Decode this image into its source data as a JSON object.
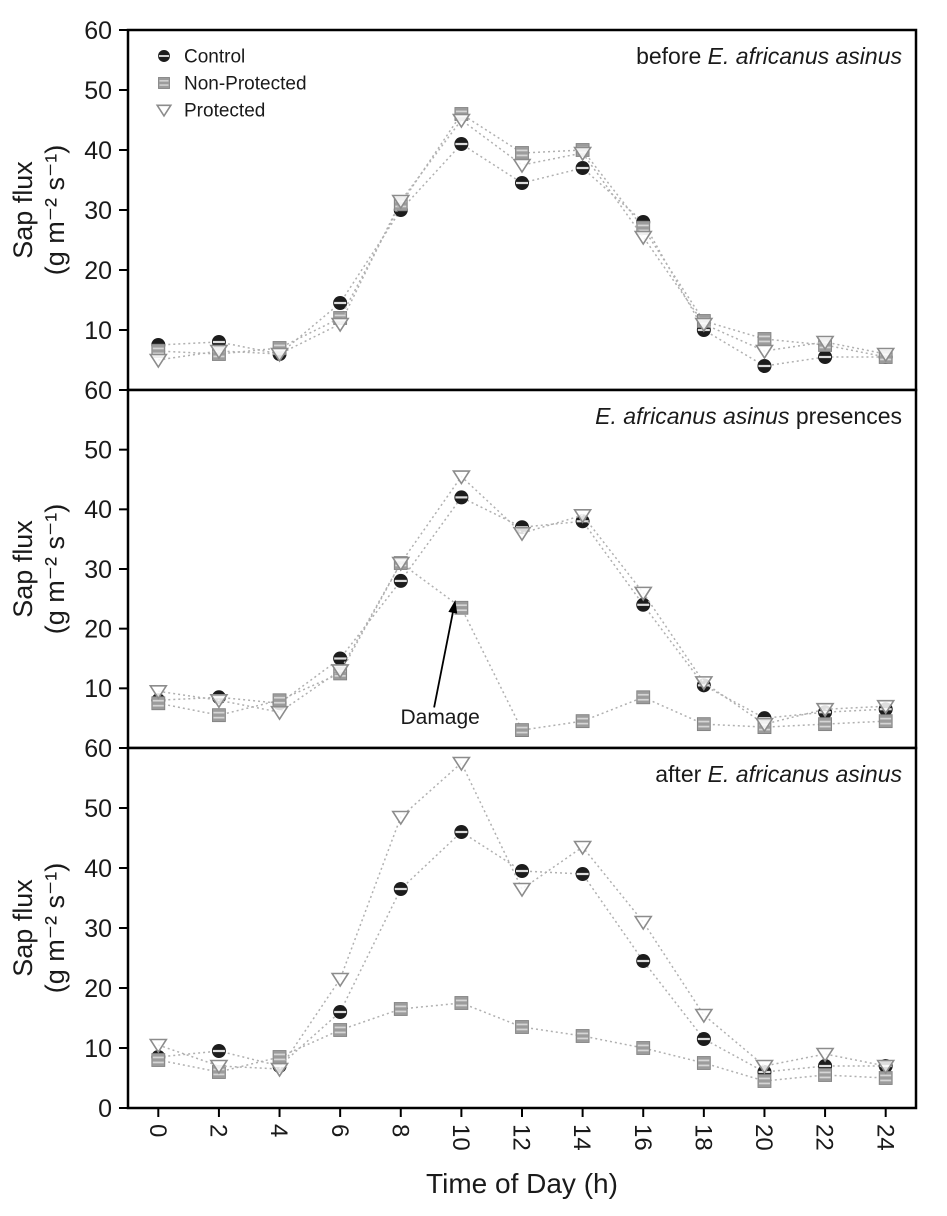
{
  "axes": {
    "xlabel": "Time of Day (h)",
    "ylabel_line1": "Sap flux",
    "ylabel_line2": "(g m⁻² s⁻¹)",
    "x_ticks": [
      0,
      2,
      4,
      6,
      8,
      10,
      12,
      14,
      16,
      18,
      20,
      22,
      24
    ],
    "y_ticks": [
      0,
      10,
      20,
      30,
      40,
      50,
      60
    ]
  },
  "legend": {
    "items": [
      {
        "label": "Control",
        "marker": "circle-filled"
      },
      {
        "label": "Non-Protected",
        "marker": "square-filled"
      },
      {
        "label": "Protected",
        "marker": "triangle-open"
      }
    ]
  },
  "colors": {
    "control": "#1c1c1c",
    "non_protected": "#9c9c9c",
    "non_protected_border": "#7f7f7f",
    "protected_stroke": "#8c8c8c",
    "line": "#b0b0b0",
    "axis": "#000000",
    "text": "#1a1a1a"
  },
  "chart_data": [
    {
      "id": "before",
      "type": "line",
      "title_segments": [
        {
          "text": "before ",
          "italic": false
        },
        {
          "text": "E. africanus asinus",
          "italic": true
        }
      ],
      "x": [
        0,
        2,
        4,
        6,
        8,
        10,
        12,
        14,
        16,
        18,
        20,
        22,
        24
      ],
      "xlim": [
        -1,
        25
      ],
      "ylim": [
        0,
        60
      ],
      "show_legend": true,
      "series": [
        {
          "name": "Control",
          "marker": "circle-filled",
          "values": [
            7.5,
            8,
            6,
            14.5,
            30,
            41,
            34.5,
            37,
            28,
            10,
            4,
            5.5,
            5.5
          ]
        },
        {
          "name": "Non-Protected",
          "marker": "square-filled",
          "values": [
            6.5,
            6,
            7,
            12,
            31,
            46,
            39.5,
            40,
            27,
            11.5,
            8.5,
            7.5,
            5.5
          ]
        },
        {
          "name": "Protected",
          "marker": "triangle-open",
          "values": [
            5,
            6.5,
            6,
            11,
            31.5,
            45,
            37.5,
            39.5,
            25.5,
            11,
            6.5,
            8,
            6
          ]
        }
      ]
    },
    {
      "id": "during",
      "type": "line",
      "title_segments": [
        {
          "text": "E. africanus asinus",
          "italic": true
        },
        {
          "text": " presences",
          "italic": false
        }
      ],
      "x": [
        0,
        2,
        4,
        6,
        8,
        10,
        12,
        14,
        16,
        18,
        20,
        22,
        24
      ],
      "xlim": [
        -1,
        25
      ],
      "ylim": [
        0,
        60
      ],
      "show_legend": false,
      "annotation": {
        "text": "Damage",
        "text_x": 9.3,
        "text_y": 4.0,
        "arrow": {
          "x1": 9.1,
          "y1": 6.8,
          "x2": 9.8,
          "y2": 24.8
        }
      },
      "series": [
        {
          "name": "Control",
          "marker": "circle-filled",
          "values": [
            8,
            8.5,
            7.5,
            15,
            28,
            42,
            37,
            38,
            24,
            10.5,
            5,
            6,
            6.5
          ]
        },
        {
          "name": "Non-Protected",
          "marker": "square-filled",
          "values": [
            7.5,
            5.5,
            8,
            12.5,
            31,
            23.5,
            3,
            4.5,
            8.5,
            4,
            3.5,
            4,
            4.5
          ]
        },
        {
          "name": "Protected",
          "marker": "triangle-open",
          "values": [
            9.5,
            8,
            6,
            13,
            31,
            45.5,
            36,
            39,
            26,
            11,
            4,
            6.5,
            7
          ]
        }
      ]
    },
    {
      "id": "after",
      "type": "line",
      "title_segments": [
        {
          "text": "after ",
          "italic": false
        },
        {
          "text": "E. africanus asinus",
          "italic": true
        }
      ],
      "x": [
        0,
        2,
        4,
        6,
        8,
        10,
        12,
        14,
        16,
        18,
        20,
        22,
        24
      ],
      "xlim": [
        -1,
        25
      ],
      "ylim": [
        0,
        60
      ],
      "show_legend": false,
      "series": [
        {
          "name": "Control",
          "marker": "circle-filled",
          "values": [
            8.5,
            9.5,
            7,
            16,
            36.5,
            46,
            39.5,
            39,
            24.5,
            11.5,
            6,
            7,
            7
          ]
        },
        {
          "name": "Non-Protected",
          "marker": "square-filled",
          "values": [
            8,
            6,
            8.5,
            13,
            16.5,
            17.5,
            13.5,
            12,
            10,
            7.5,
            4.5,
            5.5,
            5
          ]
        },
        {
          "name": "Protected",
          "marker": "triangle-open",
          "values": [
            10.5,
            7,
            6.5,
            21.5,
            48.5,
            57.5,
            36.5,
            43.5,
            31,
            15.5,
            7,
            9,
            7
          ]
        }
      ]
    }
  ]
}
